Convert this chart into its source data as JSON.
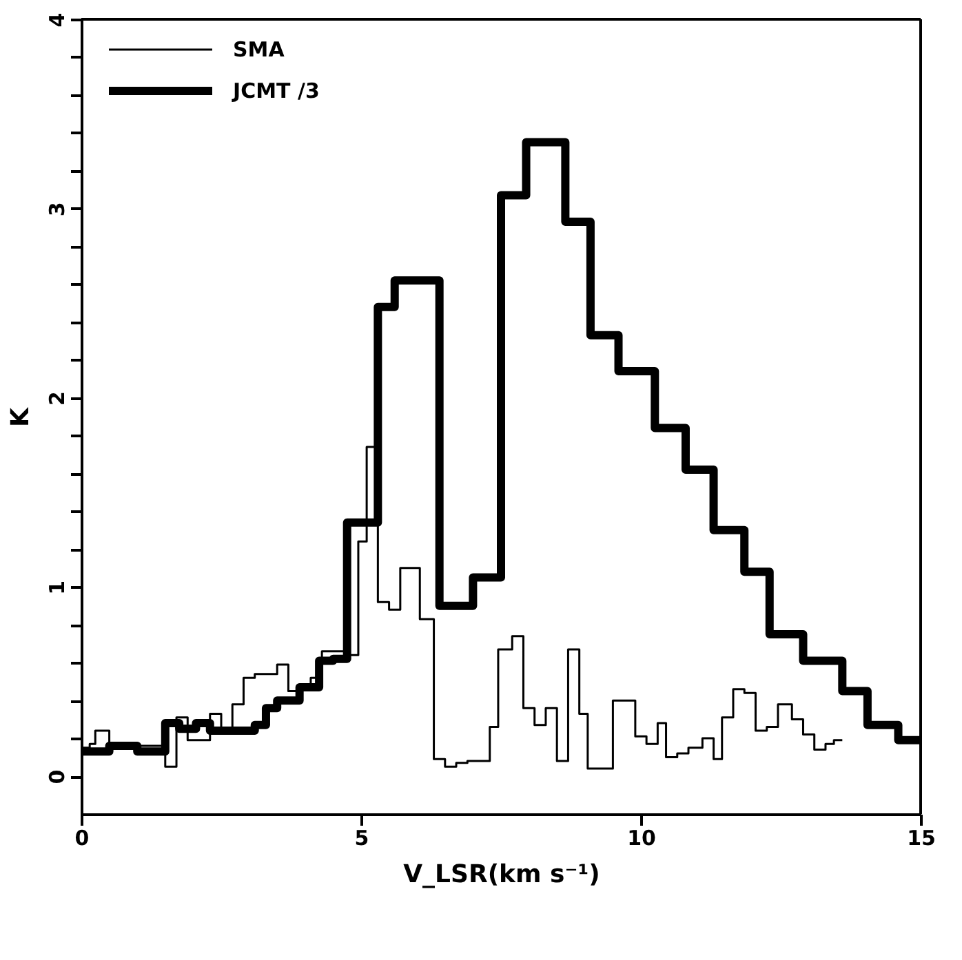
{
  "chart_data": {
    "type": "step",
    "xlabel": "V_LSR(km s⁻¹)",
    "ylabel": "K",
    "xlim": [
      0,
      15
    ],
    "xticks": [
      0,
      5,
      10,
      15
    ],
    "ylim": [
      -0.2,
      4
    ],
    "yticks": [
      0,
      {
        "value": 0.2,
        "label": null
      },
      {
        "value": 0.4,
        "label": null
      },
      {
        "value": 0.6,
        "label": null
      },
      {
        "value": 0.8,
        "label": null
      },
      1,
      {
        "value": 1.2,
        "label": null
      },
      {
        "value": 1.4,
        "label": null
      },
      {
        "value": 1.6,
        "label": null
      },
      {
        "value": 1.8,
        "label": null
      },
      2,
      {
        "value": 2.2,
        "label": null
      },
      {
        "value": 2.4,
        "label": null
      },
      {
        "value": 2.6,
        "label": null
      },
      {
        "value": 2.8,
        "label": null
      },
      3,
      {
        "value": 3.2,
        "label": null
      },
      {
        "value": 3.4,
        "label": null
      },
      {
        "value": 3.6,
        "label": null
      },
      {
        "value": 3.8,
        "label": null
      },
      4
    ],
    "grid": false,
    "legend": "top left",
    "series": [
      {
        "name": "SMA",
        "color": "#000000",
        "x": [
          0,
          0.15,
          0.25,
          0.5,
          1.5,
          1.7,
          1.9,
          2.3,
          2.5,
          2.7,
          2.9,
          3.1,
          3.5,
          3.7,
          3.9,
          4.1,
          4.3,
          4.7,
          4.95,
          5.1,
          5.3,
          5.5,
          5.7,
          6.05,
          6.3,
          6.5,
          6.7,
          6.9,
          7.3,
          7.45,
          7.7,
          7.9,
          8.1,
          8.3,
          8.5,
          8.7,
          8.9,
          9.05,
          9.5,
          9.9,
          10.1,
          10.3,
          10.45,
          10.65,
          10.85,
          11.1,
          11.3,
          11.45,
          11.65,
          11.85,
          12.05,
          12.25,
          12.45,
          12.7,
          12.9,
          13.1,
          13.3,
          13.45,
          13.6
        ],
        "values": [
          0.15,
          0.17,
          0.24,
          0.16,
          0.05,
          0.31,
          0.19,
          0.33,
          0.23,
          0.38,
          0.52,
          0.54,
          0.59,
          0.45,
          0.48,
          0.52,
          0.66,
          0.64,
          1.24,
          1.74,
          0.92,
          0.88,
          1.1,
          0.83,
          0.09,
          0.05,
          0.07,
          0.08,
          0.26,
          0.67,
          0.74,
          0.36,
          0.27,
          0.36,
          0.08,
          0.67,
          0.33,
          0.04,
          0.4,
          0.21,
          0.17,
          0.28,
          0.1,
          0.12,
          0.15,
          0.2,
          0.09,
          0.31,
          0.46,
          0.44,
          0.24,
          0.26,
          0.38,
          0.3,
          0.22,
          0.14,
          0.17,
          0.19,
          0.19
        ]
      },
      {
        "name": "JCMT /3",
        "color": "#000000",
        "x": [
          0,
          0.5,
          1.0,
          1.5,
          1.75,
          2.05,
          2.3,
          3.1,
          3.3,
          3.5,
          3.9,
          4.25,
          4.5,
          4.75,
          5.3,
          5.6,
          6.4,
          7.0,
          7.5,
          7.95,
          8.65,
          9.1,
          9.6,
          10.25,
          10.8,
          11.3,
          11.85,
          12.3,
          12.9,
          13.6,
          14.05,
          14.6,
          15
        ],
        "values": [
          0.13,
          0.16,
          0.13,
          0.28,
          0.25,
          0.28,
          0.24,
          0.27,
          0.36,
          0.4,
          0.47,
          0.61,
          0.62,
          1.34,
          2.48,
          2.62,
          0.9,
          1.05,
          3.07,
          3.35,
          2.93,
          2.33,
          2.14,
          1.84,
          1.62,
          1.3,
          1.08,
          0.75,
          0.61,
          0.45,
          0.27,
          0.19,
          0.19
        ]
      }
    ]
  }
}
